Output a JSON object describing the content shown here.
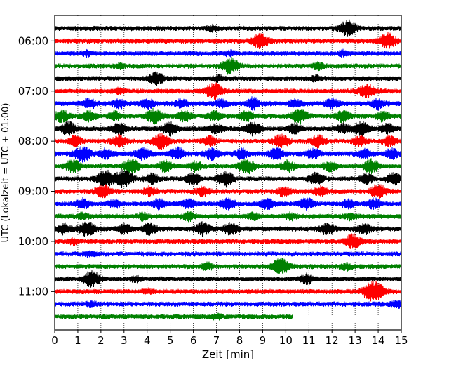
{
  "chart_data": {
    "type": "line",
    "xlabel": "Zeit  [min]",
    "ylabel": "UTC (Lokalzeit = UTC + 01:00)",
    "xlim": [
      0,
      15
    ],
    "x_ticks": [
      "0",
      "1",
      "2",
      "3",
      "4",
      "5",
      "6",
      "7",
      "8",
      "9",
      "10",
      "11",
      "12",
      "13",
      "14",
      "15"
    ],
    "y_ticks": [
      "06:00",
      "07:00",
      "08:00",
      "09:00",
      "10:00",
      "11:00"
    ],
    "grid": "vertical dotted lines at each minute",
    "colors_cycle": [
      "#000000",
      "#ff0000",
      "#0000ff",
      "#008000"
    ],
    "series": [
      {
        "start": "05:45",
        "end_min": 15,
        "color": "#000000",
        "events": [
          [
            6.8,
            3
          ],
          [
            12.7,
            10
          ]
        ]
      },
      {
        "start": "06:00",
        "end_min": 15,
        "color": "#ff0000",
        "events": [
          [
            8.9,
            9
          ],
          [
            14.4,
            10
          ]
        ]
      },
      {
        "start": "06:15",
        "end_min": 15,
        "color": "#0000ff",
        "events": [
          [
            1.4,
            3
          ],
          [
            7.6,
            3
          ],
          [
            12.5,
            3
          ]
        ]
      },
      {
        "start": "06:30",
        "end_min": 15,
        "color": "#008000",
        "events": [
          [
            2.8,
            3
          ],
          [
            7.6,
            10
          ],
          [
            11.4,
            4
          ]
        ]
      },
      {
        "start": "06:45",
        "end_min": 15,
        "color": "#000000",
        "events": [
          [
            4.4,
            8
          ],
          [
            7.1,
            3
          ],
          [
            11.3,
            3
          ]
        ]
      },
      {
        "start": "07:00",
        "end_min": 15,
        "color": "#ff0000",
        "events": [
          [
            2.8,
            3
          ],
          [
            6.9,
            10
          ],
          [
            13.5,
            9
          ]
        ]
      },
      {
        "start": "07:15",
        "end_min": 15,
        "color": "#0000ff",
        "events": [
          [
            1.5,
            6
          ],
          [
            2.8,
            5
          ],
          [
            4.0,
            6
          ],
          [
            5.5,
            5
          ],
          [
            7.2,
            5
          ],
          [
            8.6,
            7
          ],
          [
            10.4,
            5
          ],
          [
            12.0,
            6
          ],
          [
            14.0,
            6
          ]
        ]
      },
      {
        "start": "07:30",
        "end_min": 15,
        "color": "#008000",
        "events": [
          [
            0.3,
            7
          ],
          [
            1.5,
            6
          ],
          [
            2.6,
            5
          ],
          [
            4.3,
            9
          ],
          [
            5.6,
            7
          ],
          [
            6.9,
            6
          ],
          [
            8.3,
            6
          ],
          [
            10.6,
            9
          ],
          [
            12.5,
            7
          ],
          [
            14.2,
            6
          ]
        ]
      },
      {
        "start": "07:45",
        "end_min": 15,
        "color": "#000000",
        "events": [
          [
            0.6,
            8
          ],
          [
            2.8,
            7
          ],
          [
            5.0,
            8
          ],
          [
            7.0,
            6
          ],
          [
            8.6,
            8
          ],
          [
            10.4,
            6
          ],
          [
            12.5,
            6
          ],
          [
            13.3,
            9
          ],
          [
            14.4,
            6
          ]
        ]
      },
      {
        "start": "08:00",
        "end_min": 15,
        "color": "#ff0000",
        "events": [
          [
            0.9,
            6
          ],
          [
            2.8,
            7
          ],
          [
            4.6,
            9
          ],
          [
            6.7,
            6
          ],
          [
            9.8,
            8
          ],
          [
            11.4,
            7
          ],
          [
            13.2,
            6
          ],
          [
            14.5,
            6
          ]
        ]
      },
      {
        "start": "08:15",
        "end_min": 15,
        "color": "#0000ff",
        "events": [
          [
            1.2,
            10
          ],
          [
            2.2,
            6
          ],
          [
            3.8,
            7
          ],
          [
            5.3,
            8
          ],
          [
            6.8,
            7
          ],
          [
            8.1,
            6
          ],
          [
            9.6,
            7
          ],
          [
            11.2,
            6
          ],
          [
            13.4,
            6
          ],
          [
            14.6,
            6
          ]
        ]
      },
      {
        "start": "08:30",
        "end_min": 15,
        "color": "#008000",
        "events": [
          [
            0.8,
            8
          ],
          [
            3.3,
            9
          ],
          [
            4.8,
            7
          ],
          [
            6.1,
            6
          ],
          [
            8.3,
            9
          ],
          [
            10.1,
            7
          ],
          [
            11.9,
            6
          ],
          [
            13.7,
            8
          ]
        ]
      },
      {
        "start": "08:45",
        "end_min": 15,
        "color": "#000000",
        "events": [
          [
            2.2,
            10
          ],
          [
            3.0,
            11
          ],
          [
            4.2,
            6
          ],
          [
            6.0,
            7
          ],
          [
            7.4,
            9
          ],
          [
            11.3,
            7
          ],
          [
            13.5,
            6
          ],
          [
            14.7,
            7
          ]
        ]
      },
      {
        "start": "09:00",
        "end_min": 15,
        "color": "#ff0000",
        "events": [
          [
            2.1,
            8
          ],
          [
            4.1,
            6
          ],
          [
            6.4,
            6
          ],
          [
            9.9,
            6
          ],
          [
            11.5,
            6
          ],
          [
            14.0,
            9
          ]
        ]
      },
      {
        "start": "09:15",
        "end_min": 15,
        "color": "#0000ff",
        "events": [
          [
            1.2,
            6
          ],
          [
            2.6,
            5
          ],
          [
            4.5,
            6
          ],
          [
            5.8,
            6
          ],
          [
            7.5,
            7
          ],
          [
            9.2,
            6
          ],
          [
            10.9,
            7
          ],
          [
            12.7,
            5
          ],
          [
            13.8,
            6
          ]
        ]
      },
      {
        "start": "09:30",
        "end_min": 15,
        "color": "#008000",
        "events": [
          [
            1.2,
            4
          ],
          [
            3.8,
            4
          ],
          [
            5.8,
            5
          ],
          [
            8.6,
            4
          ],
          [
            10.2,
            4
          ],
          [
            12.8,
            4
          ]
        ]
      },
      {
        "start": "09:45",
        "end_min": 15,
        "color": "#000000",
        "events": [
          [
            0.4,
            6
          ],
          [
            1.4,
            9
          ],
          [
            3.0,
            6
          ],
          [
            4.1,
            7
          ],
          [
            6.4,
            8
          ],
          [
            7.6,
            7
          ],
          [
            11.8,
            7
          ],
          [
            13.4,
            6
          ]
        ]
      },
      {
        "start": "10:00",
        "end_min": 15,
        "color": "#ff0000",
        "events": [
          [
            0.8,
            3
          ],
          [
            12.9,
            9
          ]
        ]
      },
      {
        "start": "10:15",
        "end_min": 15,
        "color": "#0000ff",
        "events": [
          [
            1.5,
            3
          ]
        ]
      },
      {
        "start": "10:30",
        "end_min": 15,
        "color": "#008000",
        "events": [
          [
            6.6,
            4
          ],
          [
            9.8,
            10
          ],
          [
            12.6,
            4
          ]
        ]
      },
      {
        "start": "10:45",
        "end_min": 15,
        "color": "#000000",
        "events": [
          [
            1.6,
            10
          ],
          [
            3.5,
            3
          ],
          [
            10.9,
            6
          ]
        ]
      },
      {
        "start": "11:00",
        "end_min": 15,
        "color": "#ff0000",
        "events": [
          [
            4.0,
            3
          ],
          [
            13.8,
            14
          ]
        ]
      },
      {
        "start": "11:15",
        "end_min": 15,
        "color": "#0000ff",
        "events": [
          [
            1.6,
            3
          ],
          [
            14.8,
            4
          ]
        ]
      },
      {
        "start": "11:30",
        "end_min": 10.3,
        "color": "#008000",
        "events": [
          [
            7.0,
            3
          ]
        ]
      }
    ]
  }
}
